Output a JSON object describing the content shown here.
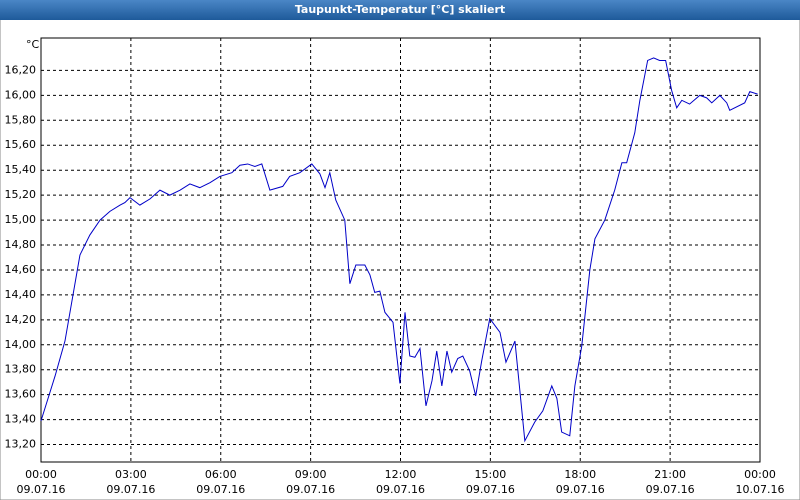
{
  "chart_data": {
    "type": "line",
    "title": "Taupunkt-Temperatur [°C] skaliert",
    "y_unit": "°C",
    "color": "#0000c8",
    "grid": true,
    "xlim": [
      0,
      24
    ],
    "ylim": [
      13.06,
      16.46
    ],
    "xticks": [
      {
        "value": 0,
        "label": "00:00",
        "date": "09.07.16"
      },
      {
        "value": 3,
        "label": "03:00",
        "date": "09.07.16"
      },
      {
        "value": 6,
        "label": "06:00",
        "date": "09.07.16"
      },
      {
        "value": 9,
        "label": "09:00",
        "date": "09.07.16"
      },
      {
        "value": 12,
        "label": "12:00",
        "date": "09.07.16"
      },
      {
        "value": 15,
        "label": "15:00",
        "date": "09.07.16"
      },
      {
        "value": 18,
        "label": "18:00",
        "date": "09.07.16"
      },
      {
        "value": 21,
        "label": "21:00",
        "date": "09.07.16"
      },
      {
        "value": 24,
        "label": "00:00",
        "date": "10.07.16"
      }
    ],
    "yticks": [
      {
        "value": 13.2,
        "label": "13,20"
      },
      {
        "value": 13.4,
        "label": "13,40"
      },
      {
        "value": 13.6,
        "label": "13,60"
      },
      {
        "value": 13.8,
        "label": "13,80"
      },
      {
        "value": 14.0,
        "label": "14,00"
      },
      {
        "value": 14.2,
        "label": "14,20"
      },
      {
        "value": 14.4,
        "label": "14,40"
      },
      {
        "value": 14.6,
        "label": "14,60"
      },
      {
        "value": 14.8,
        "label": "14,80"
      },
      {
        "value": 15.0,
        "label": "15,00"
      },
      {
        "value": 15.2,
        "label": "15,20"
      },
      {
        "value": 15.4,
        "label": "15,40"
      },
      {
        "value": 15.6,
        "label": "15,60"
      },
      {
        "value": 15.8,
        "label": "15,80"
      },
      {
        "value": 16.0,
        "label": "16,00"
      },
      {
        "value": 16.2,
        "label": "16,20"
      }
    ],
    "x": [
      0,
      0.47,
      0.8,
      1.3,
      1.63,
      1.97,
      2.3,
      2.64,
      2.8,
      2.97,
      3.3,
      3.64,
      3.97,
      4.3,
      4.64,
      4.97,
      5.3,
      5.64,
      5.97,
      6.37,
      6.64,
      6.9,
      7.14,
      7.37,
      7.64,
      8.07,
      8.3,
      8.64,
      9.04,
      9.31,
      9.48,
      9.64,
      9.84,
      10.14,
      10.31,
      10.51,
      10.81,
      10.98,
      11.14,
      11.31,
      11.48,
      11.75,
      11.98,
      12.15,
      12.31,
      12.48,
      12.65,
      12.85,
      13.05,
      13.21,
      13.38,
      13.55,
      13.71,
      13.91,
      14.08,
      14.31,
      14.51,
      14.71,
      14.98,
      15.32,
      15.52,
      15.82,
      16.15,
      16.48,
      16.75,
      17.05,
      17.22,
      17.38,
      17.65,
      17.82,
      18.05,
      18.32,
      18.49,
      18.82,
      19.15,
      19.39,
      19.55,
      19.82,
      19.99,
      20.25,
      20.45,
      20.65,
      20.85,
      21.05,
      21.22,
      21.39,
      21.65,
      21.99,
      22.22,
      22.39,
      22.66,
      22.89,
      22.99,
      23.49,
      23.66,
      23.92
    ],
    "values": [
      13.39,
      13.75,
      14.03,
      14.72,
      14.88,
      15.0,
      15.07,
      15.12,
      15.14,
      15.18,
      15.12,
      15.17,
      15.24,
      15.2,
      15.24,
      15.29,
      15.26,
      15.3,
      15.35,
      15.38,
      15.44,
      15.45,
      15.43,
      15.45,
      15.24,
      15.27,
      15.35,
      15.38,
      15.45,
      15.37,
      15.26,
      15.38,
      15.16,
      15.0,
      14.49,
      14.64,
      14.64,
      14.56,
      14.42,
      14.43,
      14.26,
      14.18,
      13.69,
      14.26,
      13.91,
      13.9,
      13.97,
      13.51,
      13.71,
      13.95,
      13.67,
      13.95,
      13.78,
      13.89,
      13.91,
      13.79,
      13.59,
      13.87,
      14.21,
      14.1,
      13.86,
      14.03,
      13.23,
      13.38,
      13.47,
      13.67,
      13.57,
      13.3,
      13.27,
      13.67,
      13.99,
      14.6,
      14.85,
      15.0,
      15.24,
      15.46,
      15.46,
      15.7,
      15.96,
      16.28,
      16.3,
      16.28,
      16.28,
      16.04,
      15.9,
      15.96,
      15.93,
      16.0,
      15.98,
      15.94,
      16.0,
      15.94,
      15.88,
      15.94,
      16.03,
      16.01
    ]
  }
}
